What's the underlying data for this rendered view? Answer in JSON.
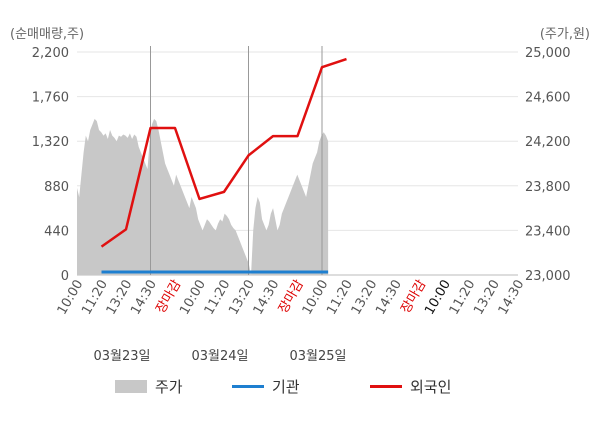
{
  "chart_data": {
    "type": "combo",
    "left_axis_unit": "(순매매량,주)",
    "right_axis_unit": "(주가,원)",
    "left_ticks": [
      "0",
      "440",
      "880",
      "1,320",
      "1,760",
      "2,200"
    ],
    "right_ticks": [
      "23,000",
      "23,400",
      "23,800",
      "24,200",
      "24,600",
      "25,000"
    ],
    "left_range": [
      0,
      2200
    ],
    "right_range": [
      23000,
      25000
    ],
    "x_ticks": [
      "10:00",
      "11:20",
      "13:20",
      "14:30",
      "장마감",
      "10:00",
      "11:20",
      "13:20",
      "14:30",
      "장마감",
      "10:00",
      "11:20",
      "13:20",
      "14:30",
      "장마감",
      "10:00",
      "11:20",
      "13:20",
      "14:30"
    ],
    "x_tick_styles": [
      "n",
      "n",
      "n",
      "n",
      "close",
      "n",
      "n",
      "n",
      "n",
      "close",
      "n",
      "n",
      "n",
      "n",
      "close",
      "dark",
      "n",
      "n",
      "n"
    ],
    "dates": [
      "03월23일",
      "03월24일",
      "03월25일"
    ],
    "legend": [
      "주가",
      "기관",
      "외국인"
    ],
    "colors": {
      "price": "#c8c8c8",
      "institution": "#1e7fd0",
      "foreign": "#e01010",
      "grid": "#e6e6e6",
      "divider": "#999999"
    },
    "price_series": [
      23780,
      23700,
      23900,
      24100,
      24250,
      24200,
      24300,
      24350,
      24400,
      24380,
      24300,
      24280,
      24250,
      24270,
      24220,
      24300,
      24250,
      24230,
      24200,
      24250,
      24240,
      24260,
      24250,
      24230,
      24270,
      24220,
      24260,
      24240,
      24150,
      24100,
      24050,
      24000,
      23950,
      24200,
      24350,
      24400,
      24380,
      24300,
      24200,
      24100,
      24000,
      23950,
      23900,
      23850,
      23800,
      23900,
      23850,
      23800,
      23750,
      23700,
      23650,
      23600,
      23700,
      23650,
      23600,
      23500,
      23450,
      23400,
      23450,
      23500,
      23480,
      23450,
      23420,
      23400,
      23460,
      23500,
      23480,
      23550,
      23530,
      23500,
      23450,
      23420,
      23400,
      23350,
      23300,
      23250,
      23200,
      23150,
      23100,
      23000,
      23400,
      23600,
      23700,
      23650,
      23500,
      23450,
      23400,
      23450,
      23550,
      23600,
      23500,
      23400,
      23450,
      23550,
      23600,
      23650,
      23700,
      23750,
      23800,
      23850,
      23900,
      23850,
      23800,
      23750,
      23700,
      23800,
      23900,
      24000,
      24050,
      24100,
      24200,
      24250,
      24280,
      24250,
      24200
    ],
    "price_start_tick": 0,
    "price_end_tick": 10.25,
    "institution": [
      30,
      30
    ],
    "institution_range_ticks": [
      1,
      10.25
    ],
    "foreign_points": [
      [
        1,
        280
      ],
      [
        2,
        450
      ],
      [
        3,
        1450
      ],
      [
        4,
        1450
      ],
      [
        5,
        750
      ],
      [
        6,
        820
      ],
      [
        7,
        1180
      ],
      [
        8,
        1370
      ],
      [
        9,
        1370
      ],
      [
        10,
        2050
      ],
      [
        11,
        2130
      ]
    ]
  }
}
